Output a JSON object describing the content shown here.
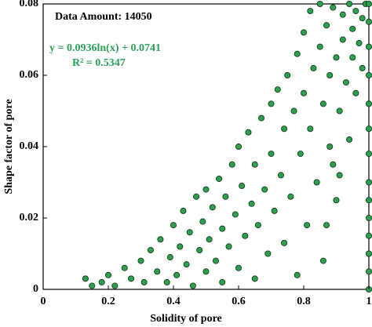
{
  "chart_data": {
    "type": "scatter",
    "xlabel": "Solidity of pore",
    "ylabel": "Shape factor of pore",
    "annotations": [
      "Data Amount: 14050",
      "y = 0.0936ln(x) + 0.0741",
      "R² = 0.5347"
    ],
    "color": "#2e9e4f",
    "xlim": [
      0,
      1
    ],
    "xticks": [
      0,
      0.2,
      0.4,
      0.6,
      0.8,
      1
    ],
    "ylim": [
      0,
      0.08
    ],
    "yticks": [
      0,
      0.02,
      0.04,
      0.06,
      0.08
    ],
    "x": [
      0.13,
      0.15,
      0.18,
      0.2,
      0.22,
      0.25,
      0.27,
      0.3,
      0.31,
      0.33,
      0.35,
      0.36,
      0.38,
      0.39,
      0.4,
      0.41,
      0.42,
      0.43,
      0.44,
      0.45,
      0.46,
      0.47,
      0.48,
      0.49,
      0.5,
      0.5,
      0.51,
      0.52,
      0.53,
      0.54,
      0.55,
      0.55,
      0.56,
      0.57,
      0.58,
      0.59,
      0.6,
      0.6,
      0.61,
      0.62,
      0.63,
      0.64,
      0.65,
      0.65,
      0.66,
      0.67,
      0.68,
      0.69,
      0.7,
      0.7,
      0.71,
      0.72,
      0.73,
      0.74,
      0.74,
      0.75,
      0.76,
      0.77,
      0.78,
      0.78,
      0.79,
      0.8,
      0.8,
      0.81,
      0.82,
      0.82,
      0.83,
      0.84,
      0.85,
      0.85,
      0.86,
      0.86,
      0.87,
      0.88,
      0.88,
      0.89,
      0.9,
      0.9,
      0.91,
      0.92,
      0.92,
      0.93,
      0.94,
      0.94,
      0.95,
      0.95,
      0.96,
      0.96,
      0.97,
      0.98,
      0.98,
      0.99,
      0.89,
      0.91,
      0.87,
      1,
      1,
      1,
      1,
      1,
      1,
      1,
      1,
      1,
      1,
      1,
      1,
      1,
      1
    ],
    "values": [
      0.003,
      0.001,
      0.002,
      0.004,
      0.001,
      0.006,
      0.003,
      0.008,
      0.002,
      0.011,
      0.005,
      0.014,
      0.002,
      0.009,
      0.018,
      0.004,
      0.012,
      0.022,
      0.007,
      0.016,
      0.001,
      0.026,
      0.011,
      0.019,
      0.005,
      0.028,
      0.014,
      0.023,
      0.008,
      0.031,
      0.017,
      0.002,
      0.026,
      0.012,
      0.035,
      0.021,
      0.006,
      0.04,
      0.029,
      0.015,
      0.044,
      0.024,
      0.003,
      0.035,
      0.018,
      0.048,
      0.028,
      0.01,
      0.052,
      0.038,
      0.022,
      0.056,
      0.032,
      0.013,
      0.045,
      0.06,
      0.026,
      0.05,
      0.004,
      0.066,
      0.038,
      0.072,
      0.055,
      0.018,
      0.078,
      0.045,
      0.062,
      0.03,
      0.08,
      0.068,
      0.052,
      0.008,
      0.074,
      0.04,
      0.06,
      0.079,
      0.065,
      0.025,
      0.05,
      0.077,
      0.07,
      0.058,
      0.042,
      0.08,
      0.073,
      0.065,
      0.055,
      0.078,
      0.069,
      0.076,
      0.062,
      0.08,
      0.035,
      0.032,
      0.018,
      0,
      0.005,
      0.01,
      0.015,
      0.02,
      0.025,
      0.03,
      0.038,
      0.045,
      0.052,
      0.06,
      0.068,
      0.075,
      0.08
    ]
  }
}
